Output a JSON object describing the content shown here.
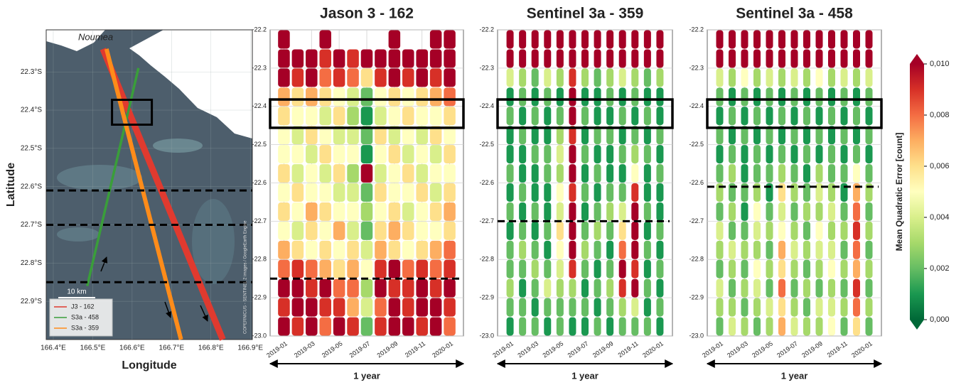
{
  "chart_data": [
    {
      "type": "map",
      "xlabel": "Longitude",
      "ylabel": "Latitude",
      "place_label": "Noumea",
      "scale_label": "10 km",
      "attribution": "COPERNICUS - SENTINEL 2 images / GoogleEarth Engine",
      "xlim": [
        166.382,
        166.905
      ],
      "ylim": [
        -23.0,
        -22.19
      ],
      "xticks": [
        {
          "value": 166.4,
          "label": "166.4°E"
        },
        {
          "value": 166.5,
          "label": "166.5°E"
        },
        {
          "value": 166.6,
          "label": "166.6°E"
        },
        {
          "value": 166.7,
          "label": "166.7°E"
        },
        {
          "value": 166.8,
          "label": "166.8°E"
        },
        {
          "value": 166.9,
          "label": "166.9°E"
        }
      ],
      "yticks": [
        {
          "value": -22.3,
          "label": "22.3°S"
        },
        {
          "value": -22.4,
          "label": "22.4°S"
        },
        {
          "value": -22.5,
          "label": "22.5°S"
        },
        {
          "value": -22.6,
          "label": "22.6°S"
        },
        {
          "value": -22.7,
          "label": "22.7°S"
        },
        {
          "value": -22.8,
          "label": "22.8°S"
        },
        {
          "value": -22.9,
          "label": "22.9°S"
        }
      ],
      "series": [
        {
          "name": "J3 - 162",
          "color": "#e03a2f",
          "lon": [
            166.526,
            166.83
          ],
          "lat": [
            -22.24,
            -23.0
          ]
        },
        {
          "name": "S3a - 458",
          "color": "#3a9e3a",
          "lon": [
            166.616,
            166.486
          ],
          "lat": [
            -22.29,
            -22.86
          ]
        },
        {
          "name": "S3a - 359",
          "color": "#ff8c1a",
          "lon": [
            166.535,
            166.724
          ],
          "lat": [
            -22.24,
            -23.0
          ]
        }
      ],
      "box": {
        "lon": [
          166.549,
          166.65
        ],
        "lat": [
          -22.373,
          -22.438
        ]
      },
      "dashed_lat": [
        -22.61,
        -22.7,
        -22.85
      ]
    },
    {
      "type": "strip",
      "title": "Jason 3 - 162",
      "title_color": "#e03a2f",
      "span_label": "1 year",
      "x": [
        "2019-01",
        "2019-02",
        "2019-03",
        "2019-04",
        "2019-05",
        "2019-06",
        "2019-07",
        "2019-08",
        "2019-09",
        "2019-10",
        "2019-11",
        "2019-12",
        "2020-01"
      ],
      "y": [
        -22.225,
        -22.275,
        -22.325,
        -22.375,
        -22.425,
        -22.475,
        -22.525,
        -22.575,
        -22.625,
        -22.675,
        -22.725,
        -22.775,
        -22.825,
        -22.875,
        -22.925,
        -22.975
      ],
      "xlim": [
        "2018-12",
        "2020-02"
      ],
      "ylim": [
        -23.0,
        -22.2
      ],
      "xticks": [
        "2019-01",
        "2019-03",
        "2019-05",
        "2019-07",
        "2019-09",
        "2019-11",
        "2020-01"
      ],
      "yticks": [
        -22.2,
        -22.3,
        -22.4,
        -22.5,
        -22.6,
        -22.7,
        -22.8,
        -22.9,
        {
          "value": -23.0,
          "label": "-23.0"
        }
      ],
      "box_lat": [
        -22.382,
        -22.456
      ],
      "dashed_lat": -22.85,
      "values": [
        [
          0.01,
          0.01,
          0.01,
          0.007,
          0.006,
          0.005,
          0.005,
          0.006,
          0.005,
          0.006,
          0.005,
          0.007,
          0.008,
          0.01,
          0.009,
          0.01
        ],
        [
          null,
          0.01,
          0.009,
          0.006,
          0.005,
          0.004,
          0.005,
          0.004,
          0.006,
          0.005,
          0.004,
          0.006,
          0.009,
          0.01,
          0.01,
          0.009
        ],
        [
          null,
          0.01,
          0.01,
          0.007,
          0.005,
          0.006,
          0.004,
          0.005,
          0.005,
          0.007,
          0.006,
          0.005,
          0.008,
          0.009,
          0.01,
          0.01
        ],
        [
          0.01,
          0.009,
          0.008,
          0.006,
          0.004,
          0.005,
          0.006,
          0.004,
          0.005,
          0.006,
          0.005,
          0.006,
          0.007,
          0.01,
          0.009,
          0.008
        ],
        [
          null,
          0.01,
          0.009,
          0.005,
          0.006,
          0.004,
          0.005,
          0.006,
          0.004,
          0.005,
          0.007,
          0.005,
          0.006,
          0.008,
          0.009,
          0.01
        ],
        [
          null,
          0.009,
          0.008,
          0.004,
          0.003,
          0.004,
          0.005,
          0.003,
          0.004,
          0.005,
          0.004,
          0.006,
          0.007,
          0.008,
          0.007,
          0.009
        ],
        [
          null,
          0.01,
          0.006,
          0.002,
          0.001,
          0.002,
          0.001,
          0.01,
          0.002,
          0.003,
          0.002,
          0.004,
          0.005,
          0.003,
          0.004,
          0.002
        ],
        [
          null,
          0.01,
          0.009,
          0.005,
          0.004,
          0.006,
          0.005,
          0.004,
          0.006,
          0.005,
          0.006,
          0.007,
          0.009,
          0.01,
          0.008,
          0.009
        ],
        [
          0.01,
          0.01,
          0.01,
          0.006,
          0.005,
          0.004,
          0.006,
          0.005,
          0.005,
          0.006,
          0.007,
          0.006,
          0.01,
          0.009,
          0.01,
          0.01
        ],
        [
          null,
          0.01,
          0.009,
          0.005,
          0.006,
          0.005,
          0.004,
          0.006,
          0.005,
          0.004,
          0.006,
          0.005,
          0.008,
          0.009,
          0.009,
          0.01
        ],
        [
          null,
          0.01,
          0.01,
          0.006,
          0.005,
          0.004,
          0.005,
          0.004,
          0.006,
          0.005,
          0.005,
          0.006,
          0.009,
          0.01,
          0.01,
          0.009
        ],
        [
          0.01,
          0.01,
          0.009,
          0.007,
          0.005,
          0.006,
          0.004,
          0.005,
          0.004,
          0.006,
          0.005,
          0.007,
          0.008,
          0.009,
          0.01,
          0.01
        ],
        [
          0.01,
          0.01,
          0.01,
          0.008,
          0.006,
          0.005,
          0.006,
          0.005,
          0.006,
          0.007,
          0.006,
          0.008,
          0.009,
          0.01,
          0.009,
          0.008
        ]
      ]
    },
    {
      "type": "strip",
      "title": "Sentinel 3a - 359",
      "title_color": "#ff8c1a",
      "span_label": "1 year",
      "x": [
        "2019-01",
        "2019-02",
        "2019-03",
        "2019-04",
        "2019-05",
        "2019-06",
        "2019-07",
        "2019-08",
        "2019-09",
        "2019-10",
        "2019-11",
        "2019-12",
        "2020-01"
      ],
      "y": [
        -22.225,
        -22.275,
        -22.325,
        -22.375,
        -22.425,
        -22.475,
        -22.525,
        -22.575,
        -22.625,
        -22.675,
        -22.725,
        -22.775,
        -22.825,
        -22.875,
        -22.925,
        -22.975
      ],
      "xlim": [
        "2018-12",
        "2020-02"
      ],
      "ylim": [
        -23.0,
        -22.2
      ],
      "xticks": [
        "2019-01",
        "2019-03",
        "2019-05",
        "2019-07",
        "2019-09",
        "2019-11",
        "2020-01"
      ],
      "yticks": [
        -22.2,
        -22.3,
        -22.4,
        -22.5,
        -22.6,
        -22.7,
        -22.8,
        -22.9,
        {
          "value": -23.0,
          "label": "-23.0"
        }
      ],
      "box_lat": [
        -22.382,
        -22.456
      ],
      "dashed_lat": -22.7,
      "values": [
        [
          0.01,
          0.01,
          0.004,
          0.001,
          0.002,
          0.001,
          0.001,
          0.002,
          0.001,
          0.002,
          0.001,
          0.002,
          0.002,
          0.003,
          0.002,
          0.001
        ],
        [
          0.01,
          0.01,
          0.003,
          0.002,
          0.001,
          0.002,
          0.001,
          0.001,
          0.002,
          0.001,
          0.002,
          0.003,
          0.002,
          0.001,
          0.002,
          0.002
        ],
        [
          0.01,
          0.01,
          0.002,
          0.001,
          0.002,
          0.001,
          0.002,
          0.001,
          0.001,
          0.002,
          0.001,
          0.002,
          0.003,
          0.002,
          0.001,
          0.002
        ],
        [
          0.01,
          0.01,
          0.004,
          0.002,
          0.001,
          0.001,
          0.002,
          0.002,
          0.001,
          0.001,
          0.002,
          0.001,
          0.002,
          0.004,
          0.002,
          0.001
        ],
        [
          0.01,
          0.01,
          0.003,
          0.001,
          0.002,
          0.003,
          0.004,
          0.003,
          0.005,
          0.004,
          0.006,
          0.005,
          0.004,
          0.003,
          0.002,
          0.002
        ],
        [
          0.01,
          0.01,
          0.009,
          0.01,
          0.01,
          0.009,
          0.01,
          0.01,
          0.009,
          0.01,
          0.01,
          0.01,
          0.009,
          0.003,
          0.002,
          0.001
        ],
        [
          0.01,
          0.01,
          0.003,
          0.001,
          0.002,
          0.001,
          0.002,
          0.001,
          0.002,
          0.001,
          0.002,
          0.003,
          0.002,
          0.001,
          0.002,
          0.001
        ],
        [
          0.01,
          0.01,
          0.002,
          0.001,
          0.001,
          0.002,
          0.001,
          0.002,
          0.001,
          0.002,
          0.003,
          0.002,
          0.001,
          0.002,
          0.001,
          0.002
        ],
        [
          0.01,
          0.01,
          0.003,
          0.002,
          0.001,
          0.002,
          0.001,
          0.001,
          0.002,
          0.003,
          0.002,
          0.001,
          0.002,
          0.003,
          0.002,
          0.001
        ],
        [
          0.01,
          0.01,
          0.004,
          0.001,
          0.002,
          0.001,
          0.002,
          0.001,
          0.002,
          0.004,
          0.006,
          0.008,
          0.01,
          0.009,
          0.003,
          0.002
        ],
        [
          0.01,
          0.01,
          0.003,
          0.002,
          0.001,
          0.002,
          0.003,
          0.005,
          0.009,
          0.01,
          0.01,
          0.01,
          0.009,
          0.01,
          0.004,
          0.002
        ],
        [
          0.01,
          0.01,
          0.002,
          0.001,
          0.002,
          0.001,
          0.002,
          0.001,
          0.001,
          0.002,
          0.001,
          0.002,
          0.001,
          0.002,
          0.001,
          0.002
        ],
        [
          0.01,
          0.01,
          0.003,
          0.001,
          0.001,
          0.002,
          0.001,
          0.002,
          0.001,
          0.001,
          0.002,
          0.001,
          0.002,
          0.001,
          0.002,
          0.001
        ]
      ]
    },
    {
      "type": "strip",
      "title": "Sentinel 3a - 458",
      "title_color": "#3aa33a",
      "span_label": "1 year",
      "x": [
        "2019-01",
        "2019-02",
        "2019-03",
        "2019-04",
        "2019-05",
        "2019-06",
        "2019-07",
        "2019-08",
        "2019-09",
        "2019-10",
        "2019-11",
        "2019-12",
        "2020-01"
      ],
      "y": [
        -22.225,
        -22.275,
        -22.325,
        -22.375,
        -22.425,
        -22.475,
        -22.525,
        -22.575,
        -22.625,
        -22.675,
        -22.725,
        -22.775,
        -22.825,
        -22.875,
        -22.925,
        -22.975
      ],
      "xlim": [
        "2018-12",
        "2020-02"
      ],
      "ylim": [
        -23.0,
        -22.2
      ],
      "xticks": [
        "2019-01",
        "2019-03",
        "2019-05",
        "2019-07",
        "2019-09",
        "2019-11",
        "2020-01"
      ],
      "yticks": [
        -22.2,
        -22.3,
        -22.4,
        -22.5,
        -22.6,
        -22.7,
        -22.8,
        -22.9,
        {
          "value": -23.0,
          "label": "-23.0"
        }
      ],
      "box_lat": [
        -22.382,
        -22.456
      ],
      "dashed_lat": -22.61,
      "values": [
        [
          0.01,
          0.01,
          0.004,
          0.002,
          0.001,
          0.002,
          0.001,
          0.002,
          0.003,
          0.002,
          0.004,
          0.003,
          0.002,
          0.004,
          0.003,
          0.002
        ],
        [
          0.01,
          0.01,
          0.003,
          0.001,
          0.002,
          0.001,
          0.002,
          0.003,
          0.002,
          0.003,
          0.002,
          0.004,
          0.003,
          0.002,
          0.003,
          0.004
        ],
        [
          0.01,
          0.01,
          0.005,
          0.002,
          0.001,
          0.002,
          0.001,
          0.001,
          0.002,
          0.001,
          0.002,
          0.003,
          0.002,
          0.003,
          0.002,
          0.003
        ],
        [
          0.01,
          0.01,
          0.003,
          0.001,
          0.002,
          0.001,
          0.002,
          0.002,
          0.003,
          0.005,
          0.004,
          0.003,
          0.005,
          0.004,
          0.003,
          0.002
        ],
        [
          0.01,
          0.01,
          0.004,
          0.002,
          0.001,
          0.002,
          0.001,
          0.002,
          0.001,
          0.002,
          0.003,
          0.002,
          0.003,
          0.002,
          0.004,
          0.003
        ],
        [
          0.01,
          0.01,
          0.003,
          0.001,
          0.002,
          0.001,
          0.002,
          0.003,
          0.006,
          0.004,
          0.005,
          0.007,
          0.006,
          0.008,
          0.006,
          0.007
        ],
        [
          0.01,
          0.01,
          0.004,
          0.002,
          0.001,
          0.002,
          0.001,
          0.002,
          0.003,
          0.002,
          0.003,
          0.004,
          0.003,
          0.002,
          0.003,
          0.004
        ],
        [
          0.01,
          0.01,
          0.003,
          0.001,
          0.002,
          0.001,
          0.002,
          0.001,
          0.002,
          0.003,
          0.002,
          0.003,
          0.002,
          0.003,
          0.002,
          0.003
        ],
        [
          0.01,
          0.01,
          0.005,
          0.002,
          0.001,
          0.002,
          0.001,
          0.003,
          0.004,
          0.003,
          0.005,
          0.004,
          0.003,
          0.002,
          0.004,
          0.003
        ],
        [
          0.01,
          0.01,
          0.003,
          0.001,
          0.002,
          0.001,
          0.002,
          0.002,
          0.003,
          0.004,
          0.003,
          0.004,
          0.005,
          0.003,
          0.004,
          0.005
        ],
        [
          0.01,
          0.01,
          0.004,
          0.002,
          0.001,
          0.002,
          0.001,
          0.002,
          0.001,
          0.002,
          0.003,
          0.002,
          0.003,
          0.002,
          0.003,
          0.002
        ],
        [
          0.01,
          0.01,
          0.003,
          0.001,
          0.002,
          0.001,
          0.002,
          0.005,
          0.007,
          0.008,
          0.009,
          0.008,
          0.007,
          0.009,
          0.008,
          0.006
        ],
        [
          0.01,
          0.01,
          0.004,
          0.002,
          0.001,
          0.002,
          0.001,
          0.002,
          0.003,
          0.002,
          0.003,
          0.002,
          0.003,
          0.002,
          0.003,
          0.002
        ]
      ]
    },
    {
      "type": "colorbar",
      "label": "Mean Quadratic Error [count]",
      "clim": [
        0,
        0.01
      ],
      "colors": [
        "#006837",
        "#1a9850",
        "#66bd63",
        "#a6d96a",
        "#d9ef8b",
        "#ffffbf",
        "#fee08b",
        "#fdae61",
        "#f46d43",
        "#d73027",
        "#a50026"
      ],
      "ticks": [
        {
          "value": 0,
          "label": "0,000"
        },
        {
          "value": 0.002,
          "label": "0,002"
        },
        {
          "value": 0.004,
          "label": "0,004"
        },
        {
          "value": 0.006,
          "label": "0,006"
        },
        {
          "value": 0.008,
          "label": "0,008"
        },
        {
          "value": 0.01,
          "label": "0,010"
        }
      ]
    }
  ]
}
